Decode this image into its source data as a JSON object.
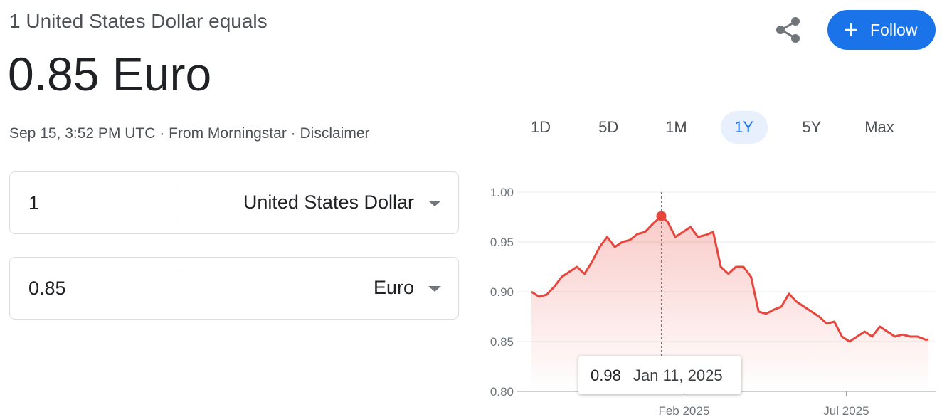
{
  "header": {
    "subtitle": "1 United States Dollar equals",
    "value": "0.85 Euro",
    "meta": [
      "Sep 15, 3:52 PM UTC",
      "From Morningstar",
      "Disclaimer"
    ]
  },
  "follow": "Follow",
  "converter": {
    "rows": [
      {
        "amount": "1",
        "currency": "United States Dollar"
      },
      {
        "amount": "0.85",
        "currency": "Euro"
      }
    ]
  },
  "ranges": [
    "1D",
    "5D",
    "1M",
    "1Y",
    "5Y",
    "Max"
  ],
  "selected_range": 3,
  "chart_data": {
    "type": "line",
    "color": "#e8453c",
    "grid": true,
    "x": [
      "2024-09-13",
      "2024-09-20",
      "2024-09-27",
      "2024-10-04",
      "2024-10-11",
      "2024-10-18",
      "2024-10-25",
      "2024-11-01",
      "2024-11-08",
      "2024-11-15",
      "2024-11-22",
      "2024-11-29",
      "2024-12-06",
      "2024-12-13",
      "2024-12-20",
      "2024-12-27",
      "2025-01-03",
      "2025-01-11",
      "2025-01-17",
      "2025-01-24",
      "2025-01-31",
      "2025-02-07",
      "2025-02-14",
      "2025-02-21",
      "2025-02-28",
      "2025-03-07",
      "2025-03-14",
      "2025-03-21",
      "2025-03-28",
      "2025-04-04",
      "2025-04-11",
      "2025-04-18",
      "2025-04-25",
      "2025-05-02",
      "2025-05-09",
      "2025-05-16",
      "2025-05-23",
      "2025-05-30",
      "2025-06-06",
      "2025-06-13",
      "2025-06-20",
      "2025-06-27",
      "2025-07-04",
      "2025-07-11",
      "2025-07-18",
      "2025-07-25",
      "2025-08-01",
      "2025-08-08",
      "2025-08-15",
      "2025-08-22",
      "2025-08-29",
      "2025-09-05",
      "2025-09-12",
      "2025-09-15"
    ],
    "values": [
      0.9,
      0.895,
      0.897,
      0.905,
      0.915,
      0.92,
      0.925,
      0.918,
      0.93,
      0.945,
      0.955,
      0.945,
      0.95,
      0.952,
      0.958,
      0.96,
      0.968,
      0.976,
      0.97,
      0.955,
      0.96,
      0.965,
      0.955,
      0.957,
      0.96,
      0.925,
      0.918,
      0.925,
      0.925,
      0.915,
      0.88,
      0.878,
      0.882,
      0.885,
      0.898,
      0.89,
      0.885,
      0.88,
      0.875,
      0.868,
      0.87,
      0.855,
      0.85,
      0.855,
      0.86,
      0.855,
      0.865,
      0.86,
      0.855,
      0.857,
      0.855,
      0.855,
      0.852,
      0.852
    ],
    "xlim": [
      "2024-09-13",
      "2025-09-15"
    ],
    "xticks": [
      {
        "value": "2025-02-01",
        "label": "Feb 2025"
      },
      {
        "value": "2025-07-01",
        "label": "Jul 2025"
      }
    ],
    "ylim": [
      0.8,
      1.0
    ],
    "yticks": [
      {
        "value": 0.8,
        "label": "0.80"
      },
      {
        "value": 0.85,
        "label": "0.85"
      },
      {
        "value": 0.9,
        "label": "0.90"
      },
      {
        "value": 0.95,
        "label": "0.95"
      },
      {
        "value": 1.0,
        "label": "1.00"
      }
    ],
    "tooltip": {
      "x": "2025-01-11",
      "y": 0.976,
      "label": "0.98",
      "date_label": "Jan 11, 2025"
    }
  }
}
